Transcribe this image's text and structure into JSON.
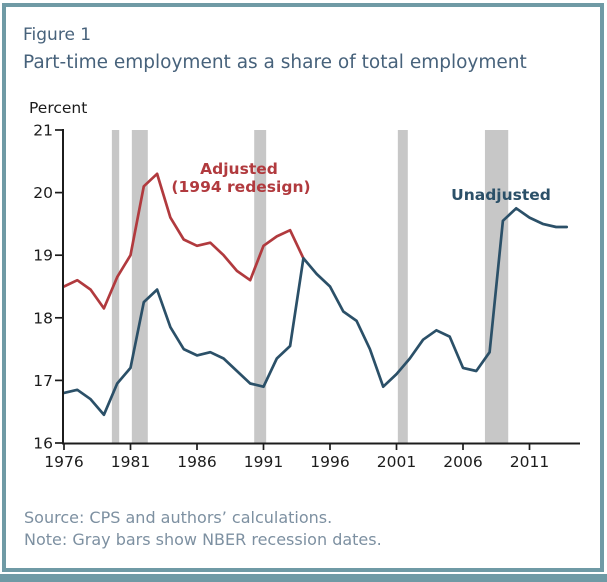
{
  "window": {
    "accent_color": "#6f9aa5"
  },
  "header": {
    "figure_label": "Figure 1",
    "title": "Part-time employment as a share of total employment",
    "title_color": "#47627b"
  },
  "footer": {
    "source": "Source: CPS and authors’ calculations.",
    "note": "Note: Gray bars show NBER recession dates.",
    "text_color": "#7d90a1"
  },
  "chart_data": {
    "type": "line",
    "title": "Part-time employment as a share of total employment",
    "xlabel": "",
    "ylabel": "Percent",
    "ylim": [
      16,
      21
    ],
    "yticks": [
      16,
      17,
      18,
      19,
      20,
      21
    ],
    "xlim": [
      1976,
      2014.8
    ],
    "xticks": [
      1976,
      1981,
      1986,
      1991,
      1996,
      2001,
      2006,
      2011
    ],
    "grid": false,
    "legend_position": "inline-annotations",
    "axis_color": "#1c1c1c",
    "recession_color": "#c7c7c7",
    "recessions": [
      [
        1979.6,
        1980.15
      ],
      [
        1981.1,
        1982.3
      ],
      [
        1990.3,
        1991.2
      ],
      [
        2001.1,
        2001.85
      ],
      [
        2007.65,
        2009.4
      ]
    ],
    "series": [
      {
        "name": "Adjusted (1994 redesign)",
        "color": "#b13a3e",
        "x": [
          1976,
          1977,
          1978,
          1979,
          1980,
          1981,
          1982,
          1983,
          1984,
          1985,
          1986,
          1987,
          1988,
          1989,
          1990,
          1991,
          1992,
          1993,
          1994
        ],
        "values": [
          18.5,
          18.6,
          18.45,
          18.15,
          18.65,
          19.0,
          20.1,
          20.3,
          19.6,
          19.25,
          19.15,
          19.2,
          19.0,
          18.75,
          18.6,
          19.15,
          19.3,
          19.4,
          18.95
        ]
      },
      {
        "name": "Unadjusted",
        "color": "#2b5068",
        "x": [
          1976,
          1977,
          1978,
          1979,
          1980,
          1981,
          1982,
          1983,
          1984,
          1985,
          1986,
          1987,
          1988,
          1989,
          1990,
          1991,
          1992,
          1993,
          1994,
          1995,
          1996,
          1997,
          1998,
          1999,
          2000,
          2001,
          2002,
          2003,
          2004,
          2005,
          2006,
          2007,
          2008,
          2009,
          2010,
          2011,
          2012,
          2013,
          2013.8
        ],
        "values": [
          16.8,
          16.85,
          16.7,
          16.45,
          16.95,
          17.2,
          18.25,
          18.45,
          17.85,
          17.5,
          17.4,
          17.45,
          17.35,
          17.15,
          16.95,
          16.9,
          17.35,
          17.55,
          18.95,
          18.7,
          18.5,
          18.1,
          17.95,
          17.5,
          16.9,
          17.1,
          17.35,
          17.65,
          17.8,
          17.7,
          17.2,
          17.15,
          17.45,
          19.55,
          19.75,
          19.6,
          19.5,
          19.45,
          19.45
        ]
      }
    ],
    "annotations": [
      {
        "text": "Adjusted",
        "color": "#b13a3e"
      },
      {
        "text": "(1994 redesign)",
        "color": "#b13a3e"
      },
      {
        "text": "Unadjusted",
        "color": "#2b5068"
      }
    ]
  }
}
